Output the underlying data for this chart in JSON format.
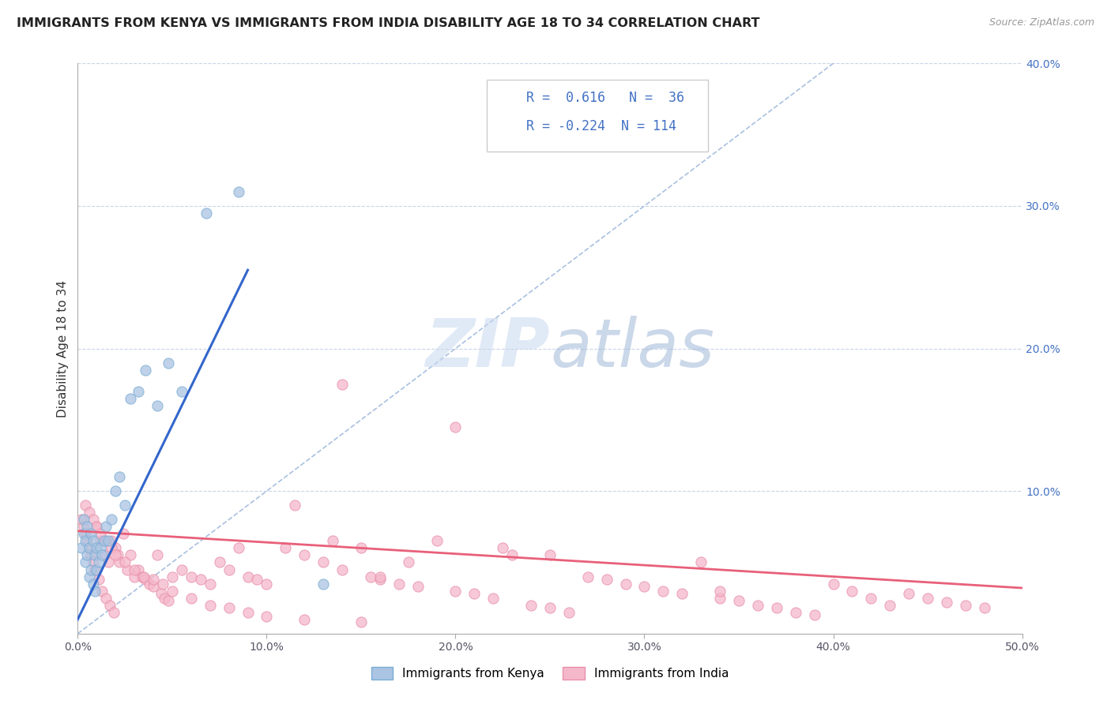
{
  "title": "IMMIGRANTS FROM KENYA VS IMMIGRANTS FROM INDIA DISABILITY AGE 18 TO 34 CORRELATION CHART",
  "source": "Source: ZipAtlas.com",
  "ylabel": "Disability Age 18 to 34",
  "xlim": [
    0.0,
    0.5
  ],
  "ylim": [
    0.0,
    0.4
  ],
  "xticks": [
    0.0,
    0.1,
    0.2,
    0.3,
    0.4,
    0.5
  ],
  "yticks": [
    0.0,
    0.1,
    0.2,
    0.3,
    0.4
  ],
  "xtick_labels": [
    "0.0%",
    "10.0%",
    "20.0%",
    "30.0%",
    "40.0%",
    "50.0%"
  ],
  "ytick_labels": [
    "",
    "10.0%",
    "20.0%",
    "30.0%",
    "40.0%"
  ],
  "legend_labels": [
    "Immigrants from Kenya",
    "Immigrants from India"
  ],
  "kenya_color": "#aac4e2",
  "india_color": "#f5b8cb",
  "kenya_edge": "#7aadd4",
  "india_edge": "#e890aa",
  "kenya_line_color": "#3366cc",
  "india_line_color": "#e8607a",
  "ref_line_color": "#a8c0e0",
  "R_kenya": 0.616,
  "N_kenya": 36,
  "R_india": -0.224,
  "N_india": 114,
  "watermark_zip": "ZIP",
  "watermark_atlas": "atlas",
  "background_color": "#ffffff",
  "grid_color": "#c8d4e8",
  "kenya_x": [
    0.002,
    0.003,
    0.003,
    0.004,
    0.004,
    0.005,
    0.005,
    0.006,
    0.006,
    0.007,
    0.007,
    0.008,
    0.008,
    0.009,
    0.009,
    0.01,
    0.01,
    0.011,
    0.012,
    0.013,
    0.014,
    0.015,
    0.016,
    0.018,
    0.02,
    0.022,
    0.025,
    0.028,
    0.032,
    0.036,
    0.042,
    0.048,
    0.055,
    0.068,
    0.085,
    0.13
  ],
  "kenya_y": [
    0.06,
    0.07,
    0.08,
    0.05,
    0.065,
    0.055,
    0.075,
    0.04,
    0.06,
    0.045,
    0.07,
    0.035,
    0.065,
    0.03,
    0.055,
    0.045,
    0.06,
    0.05,
    0.06,
    0.055,
    0.065,
    0.075,
    0.065,
    0.08,
    0.1,
    0.11,
    0.09,
    0.165,
    0.17,
    0.185,
    0.16,
    0.19,
    0.17,
    0.295,
    0.31,
    0.035
  ],
  "india_x": [
    0.002,
    0.003,
    0.004,
    0.005,
    0.006,
    0.007,
    0.008,
    0.009,
    0.01,
    0.011,
    0.012,
    0.013,
    0.014,
    0.015,
    0.016,
    0.017,
    0.018,
    0.019,
    0.02,
    0.021,
    0.022,
    0.024,
    0.026,
    0.028,
    0.03,
    0.032,
    0.034,
    0.036,
    0.038,
    0.04,
    0.042,
    0.044,
    0.046,
    0.048,
    0.05,
    0.055,
    0.06,
    0.065,
    0.07,
    0.075,
    0.08,
    0.085,
    0.09,
    0.095,
    0.1,
    0.11,
    0.115,
    0.12,
    0.13,
    0.135,
    0.14,
    0.15,
    0.155,
    0.16,
    0.17,
    0.18,
    0.19,
    0.2,
    0.21,
    0.22,
    0.23,
    0.24,
    0.25,
    0.26,
    0.27,
    0.28,
    0.29,
    0.3,
    0.31,
    0.32,
    0.33,
    0.34,
    0.35,
    0.36,
    0.37,
    0.38,
    0.39,
    0.4,
    0.41,
    0.42,
    0.43,
    0.44,
    0.45,
    0.46,
    0.47,
    0.48,
    0.004,
    0.006,
    0.008,
    0.01,
    0.012,
    0.015,
    0.018,
    0.02,
    0.025,
    0.03,
    0.035,
    0.04,
    0.045,
    0.05,
    0.06,
    0.07,
    0.08,
    0.09,
    0.1,
    0.12,
    0.15,
    0.175,
    0.2,
    0.225,
    0.25,
    0.14,
    0.16,
    0.34
  ],
  "india_y": [
    0.08,
    0.075,
    0.07,
    0.065,
    0.06,
    0.055,
    0.05,
    0.045,
    0.075,
    0.038,
    0.065,
    0.03,
    0.055,
    0.025,
    0.05,
    0.02,
    0.065,
    0.015,
    0.06,
    0.055,
    0.05,
    0.07,
    0.045,
    0.055,
    0.04,
    0.045,
    0.04,
    0.038,
    0.035,
    0.033,
    0.055,
    0.028,
    0.025,
    0.023,
    0.04,
    0.045,
    0.04,
    0.038,
    0.035,
    0.05,
    0.045,
    0.06,
    0.04,
    0.038,
    0.035,
    0.06,
    0.09,
    0.055,
    0.05,
    0.065,
    0.045,
    0.06,
    0.04,
    0.038,
    0.035,
    0.033,
    0.065,
    0.03,
    0.028,
    0.025,
    0.055,
    0.02,
    0.018,
    0.015,
    0.04,
    0.038,
    0.035,
    0.033,
    0.03,
    0.028,
    0.05,
    0.025,
    0.023,
    0.02,
    0.018,
    0.015,
    0.013,
    0.035,
    0.03,
    0.025,
    0.02,
    0.028,
    0.025,
    0.022,
    0.02,
    0.018,
    0.09,
    0.085,
    0.08,
    0.075,
    0.07,
    0.065,
    0.06,
    0.055,
    0.05,
    0.045,
    0.04,
    0.038,
    0.035,
    0.03,
    0.025,
    0.02,
    0.018,
    0.015,
    0.012,
    0.01,
    0.008,
    0.05,
    0.145,
    0.06,
    0.055,
    0.175,
    0.04,
    0.03
  ]
}
